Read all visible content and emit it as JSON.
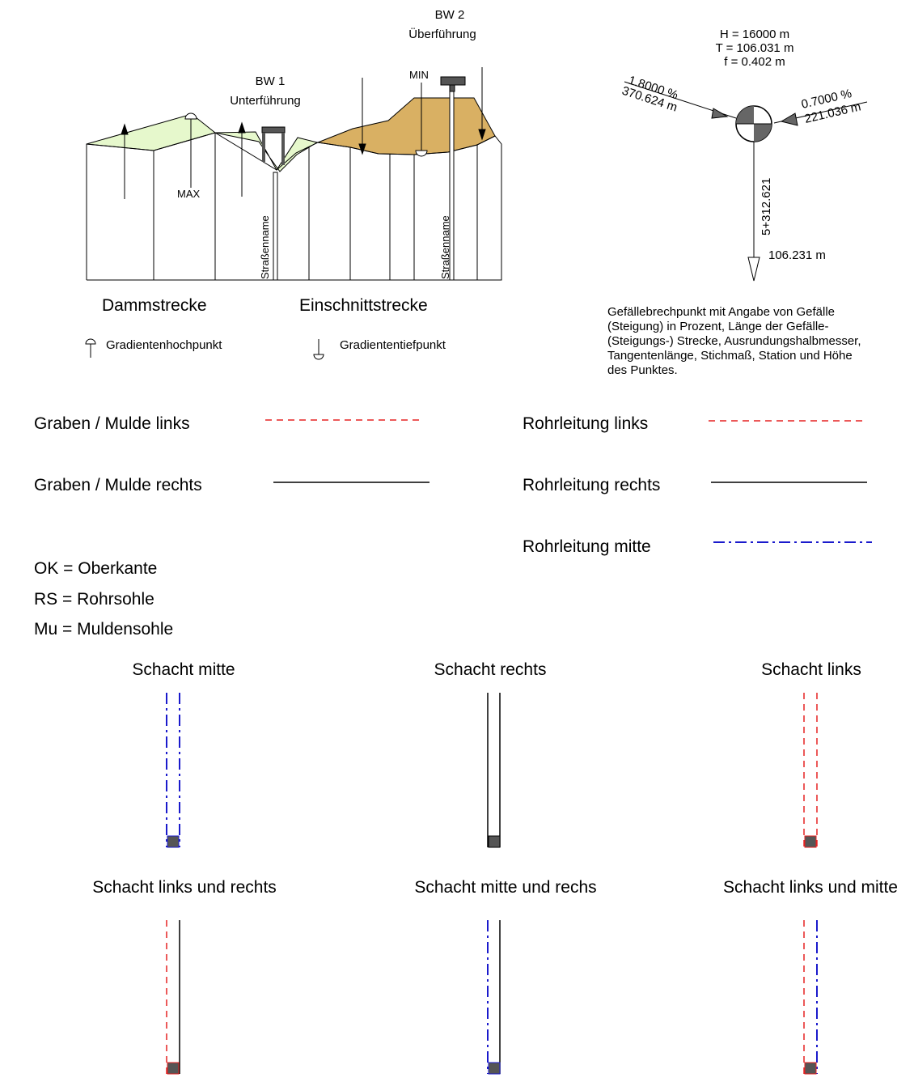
{
  "colors": {
    "embankment_fill": "#e6f8cc",
    "cut_fill": "#d9b063",
    "pipe_left_red": "#e52222",
    "pipe_center_blue": "#1a1acc",
    "shaft_base": "#555555",
    "vertex_fill": "#666666"
  },
  "profile": {
    "bw1": {
      "title": "BW 1",
      "subtitle": "Unterführung"
    },
    "bw2": {
      "title": "BW 2",
      "subtitle": "Überführung"
    },
    "max_label": "MAX",
    "min_label": "MIN",
    "street_label_1": "Straßenname",
    "street_label_2": "Straßenname",
    "section_embankment": "Dammstrecke",
    "section_cut": "Einschnittstrecke"
  },
  "gradient_legend": {
    "high_point": {
      "label": "Gradientenhochpunkt",
      "icon": "gradient-high-point-icon"
    },
    "low_point": {
      "label": "Gradiententiefpunkt",
      "icon": "gradient-low-point-icon"
    }
  },
  "vertex_point": {
    "H": "H = 16000 m",
    "T": "T = 106.031 m",
    "f": "f = 0.402 m",
    "left_grade": "1.8000 %",
    "left_length": "370.624 m",
    "right_grade": "0.7000 %",
    "right_length": "221.036 m",
    "station": "5+312.621",
    "height": "106.231 m",
    "description": [
      "Gefällebrechpunkt mit Angabe von Gefälle",
      "(Steigung) in Prozent, Länge der Gefälle-",
      "(Steigungs-) Strecke, Ausrundungshalbmesser,",
      "Tangentenlänge, Stichmaß, Station und Höhe",
      "des Punktes."
    ]
  },
  "line_legend": {
    "graben_links": "Graben / Mulde links",
    "graben_rechts": "Graben / Mulde rechts",
    "rohr_links": "Rohrleitung links",
    "rohr_rechts": "Rohrleitung rechts",
    "rohr_mitte": "Rohrleitung mitte"
  },
  "abbreviations": [
    "OK = Oberkante",
    "RS = Rohrsohle",
    "Mu = Muldensohle"
  ],
  "shafts": {
    "mitte": "Schacht mitte",
    "rechts": "Schacht rechts",
    "links": "Schacht links",
    "links_rechts": "Schacht links und rechts",
    "mitte_rechts": "Schacht mitte und rechs",
    "links_mitte": "Schacht links und mitte"
  }
}
